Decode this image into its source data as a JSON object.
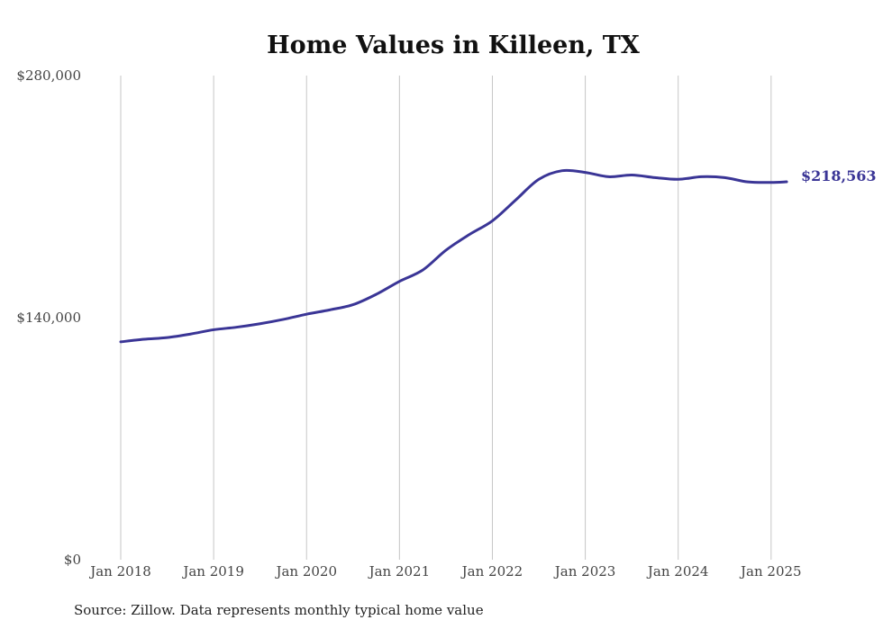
{
  "chart_data": {
    "type": "line",
    "title": "Home Values in Killeen, TX",
    "xlabel": "",
    "ylabel": "",
    "ylim": [
      0,
      280000
    ],
    "yticks": [
      {
        "value": 0,
        "label": "$0"
      },
      {
        "value": 140000,
        "label": "$140,000"
      },
      {
        "value": 280000,
        "label": "$280,000"
      }
    ],
    "xlim": [
      "2018-01",
      "2025-03"
    ],
    "xticks": [
      {
        "x": "2018-01",
        "label": "Jan 2018"
      },
      {
        "x": "2019-01",
        "label": "Jan 2019"
      },
      {
        "x": "2020-01",
        "label": "Jan 2020"
      },
      {
        "x": "2021-01",
        "label": "Jan 2021"
      },
      {
        "x": "2022-01",
        "label": "Jan 2022"
      },
      {
        "x": "2023-01",
        "label": "Jan 2023"
      },
      {
        "x": "2024-01",
        "label": "Jan 2024"
      },
      {
        "x": "2025-01",
        "label": "Jan 2025"
      }
    ],
    "grid": "vertical",
    "series": [
      {
        "color": "#3a3596",
        "end_label": "$218,563",
        "points": [
          {
            "x": "2018-01",
            "y": 126000
          },
          {
            "x": "2018-04",
            "y": 127500
          },
          {
            "x": "2018-07",
            "y": 128500
          },
          {
            "x": "2018-10",
            "y": 130500
          },
          {
            "x": "2019-01",
            "y": 133000
          },
          {
            "x": "2019-04",
            "y": 134500
          },
          {
            "x": "2019-07",
            "y": 136500
          },
          {
            "x": "2019-10",
            "y": 139000
          },
          {
            "x": "2020-01",
            "y": 142000
          },
          {
            "x": "2020-04",
            "y": 144500
          },
          {
            "x": "2020-07",
            "y": 147500
          },
          {
            "x": "2020-10",
            "y": 153500
          },
          {
            "x": "2021-01",
            "y": 161000
          },
          {
            "x": "2021-04",
            "y": 167500
          },
          {
            "x": "2021-07",
            "y": 179000
          },
          {
            "x": "2021-10",
            "y": 188000
          },
          {
            "x": "2022-01",
            "y": 196000
          },
          {
            "x": "2022-04",
            "y": 208000
          },
          {
            "x": "2022-07",
            "y": 220000
          },
          {
            "x": "2022-10",
            "y": 225000
          },
          {
            "x": "2023-01",
            "y": 224000
          },
          {
            "x": "2023-04",
            "y": 221500
          },
          {
            "x": "2023-07",
            "y": 222500
          },
          {
            "x": "2023-10",
            "y": 221000
          },
          {
            "x": "2024-01",
            "y": 220000
          },
          {
            "x": "2024-04",
            "y": 221500
          },
          {
            "x": "2024-07",
            "y": 221000
          },
          {
            "x": "2024-10",
            "y": 218500
          },
          {
            "x": "2025-01",
            "y": 218200
          },
          {
            "x": "2025-03",
            "y": 218563
          }
        ]
      }
    ]
  },
  "footer": {
    "source": "Source: Zillow. Data represents monthly typical home value"
  }
}
